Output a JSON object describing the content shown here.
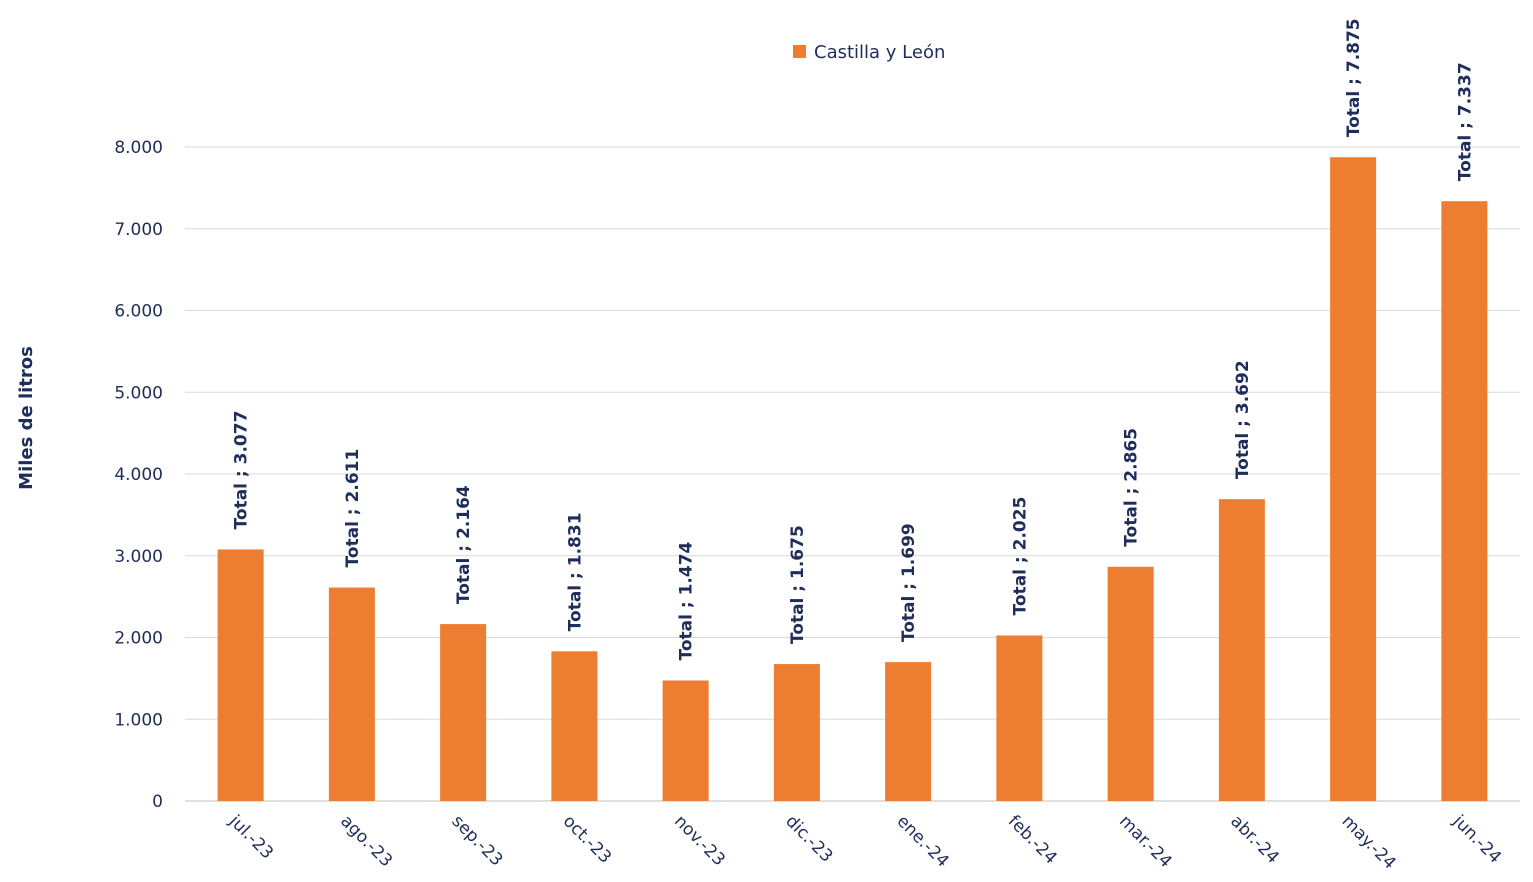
{
  "chart_data": {
    "type": "bar",
    "ylabel": "Miles de litros",
    "ylim": [
      0,
      8000
    ],
    "yticks": [
      0,
      1000,
      2000,
      3000,
      4000,
      5000,
      6000,
      7000,
      8000
    ],
    "ytick_labels": [
      "0",
      "1.000",
      "2.000",
      "3.000",
      "4.000",
      "5.000",
      "6.000",
      "7.000",
      "8.000"
    ],
    "grid": true,
    "legend_position": "top-center",
    "categories": [
      "jul.-23",
      "ago.-23",
      "sep.-23",
      "oct.-23",
      "nov.-23",
      "dic.-23",
      "ene.-24",
      "feb.-24",
      "mar.-24",
      "abr.-24",
      "may.-24",
      "jun.-24"
    ],
    "series": [
      {
        "name": "Castilla y León",
        "color": "#ed7d31",
        "values": [
          3077,
          2611,
          2164,
          1831,
          1474,
          1675,
          1699,
          2025,
          2865,
          3692,
          7875,
          7337
        ],
        "data_labels": [
          "Total ; 3.077",
          "Total ; 2.611",
          "Total ; 2.164",
          "Total ; 1.831",
          "Total ; 1.474",
          "Total ; 1.675",
          "Total ; 1.699",
          "Total ; 2.025",
          "Total ; 2.865",
          "Total ; 3.692",
          "Total ; 7.875",
          "Total ; 7.337"
        ]
      }
    ]
  }
}
